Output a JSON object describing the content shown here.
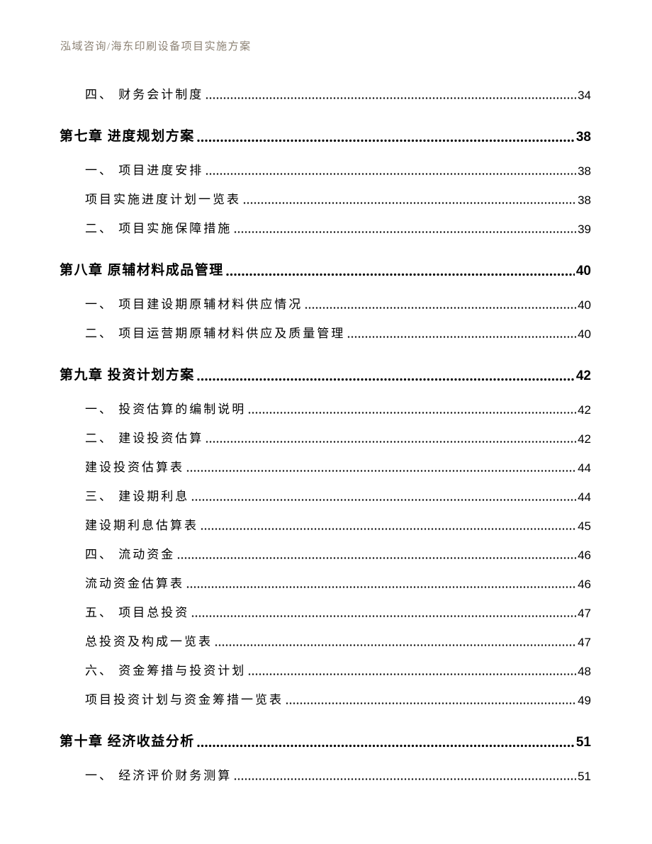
{
  "header": {
    "title": "泓域咨询/海东印刷设备项目实施方案",
    "color": "#8c8274"
  },
  "toc": {
    "entries": [
      {
        "level": "item",
        "text": "四、 财务会计制度",
        "page": "34"
      },
      {
        "level": "chapter",
        "text": "第七章 进度规划方案",
        "page": "38"
      },
      {
        "level": "item",
        "text": "一、 项目进度安排",
        "page": "38"
      },
      {
        "level": "caption",
        "text": "项目实施进度计划一览表",
        "page": "38"
      },
      {
        "level": "item",
        "text": "二、 项目实施保障措施",
        "page": "39"
      },
      {
        "level": "chapter",
        "text": "第八章 原辅材料成品管理",
        "page": "40"
      },
      {
        "level": "item",
        "text": "一、 项目建设期原辅材料供应情况",
        "page": "40"
      },
      {
        "level": "item",
        "text": "二、 项目运营期原辅材料供应及质量管理",
        "page": "40"
      },
      {
        "level": "chapter",
        "text": "第九章 投资计划方案",
        "page": "42"
      },
      {
        "level": "item",
        "text": "一、 投资估算的编制说明",
        "page": "42"
      },
      {
        "level": "item",
        "text": "二、 建设投资估算",
        "page": "42"
      },
      {
        "level": "caption",
        "text": "建设投资估算表",
        "page": "44"
      },
      {
        "level": "item",
        "text": "三、 建设期利息",
        "page": "44"
      },
      {
        "level": "caption",
        "text": "建设期利息估算表",
        "page": "45"
      },
      {
        "level": "item",
        "text": "四、 流动资金",
        "page": "46"
      },
      {
        "level": "caption",
        "text": "流动资金估算表",
        "page": "46"
      },
      {
        "level": "item",
        "text": "五、 项目总投资",
        "page": "47"
      },
      {
        "level": "caption",
        "text": "总投资及构成一览表",
        "page": "47"
      },
      {
        "level": "item",
        "text": "六、 资金筹措与投资计划",
        "page": "48"
      },
      {
        "level": "caption",
        "text": "项目投资计划与资金筹措一览表",
        "page": "49"
      },
      {
        "level": "chapter",
        "text": "第十章 经济收益分析",
        "page": "51"
      },
      {
        "level": "item",
        "text": "一、 经济评价财务测算",
        "page": "51"
      }
    ]
  },
  "colors": {
    "text": "#000000",
    "background": "#ffffff",
    "header_text": "#8c8274"
  }
}
